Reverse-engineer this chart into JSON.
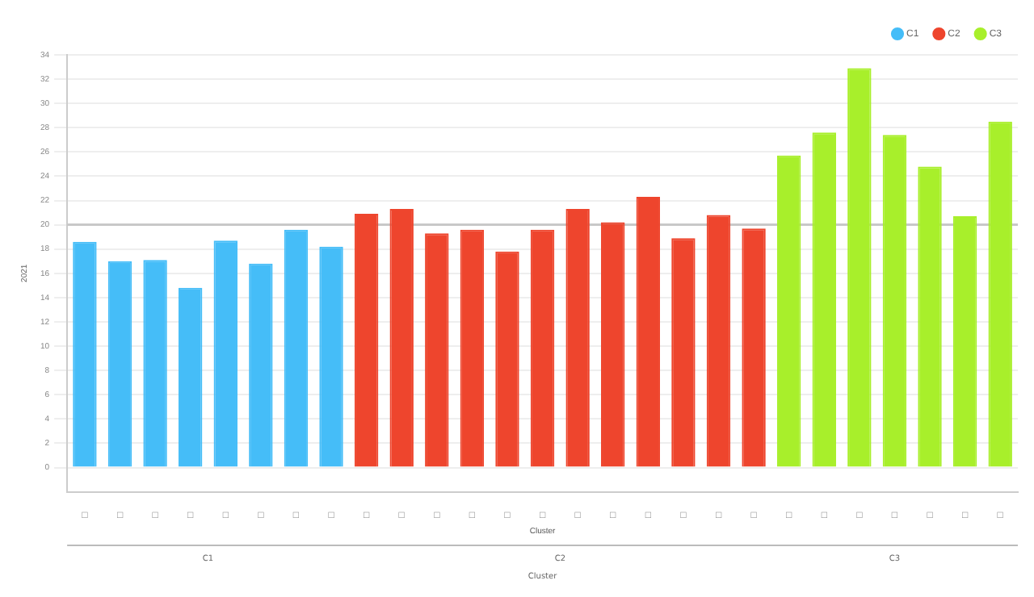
{
  "chart_data": {
    "type": "bar",
    "xlabel": "Cluster",
    "ylabel": "2021",
    "categories": [
      "□",
      "□",
      "□",
      "□",
      "□",
      "□",
      "□",
      "□",
      "□",
      "□",
      "□",
      "□",
      "□",
      "□",
      "□",
      "□",
      "□",
      "□",
      "□",
      "□",
      "□",
      "□",
      "□",
      "□",
      "□",
      "□",
      "□"
    ],
    "series": [
      {
        "name": "C1",
        "color": "#45bdf8",
        "values": [
          18.6,
          17,
          17.1,
          14.8,
          18.7,
          16.8,
          19.6,
          18.2,
          null,
          null,
          null,
          null,
          null,
          null,
          null,
          null,
          null,
          null,
          null,
          null,
          null,
          null,
          null,
          null,
          null,
          null,
          null
        ]
      },
      {
        "name": "C2",
        "color": "#ee452d",
        "values": [
          null,
          null,
          null,
          null,
          null,
          null,
          null,
          null,
          20.9,
          21.3,
          19.3,
          19.6,
          17.8,
          19.6,
          21.3,
          20.2,
          22.3,
          18.9,
          20.8,
          19.7,
          null,
          null,
          null,
          null,
          null,
          null,
          null
        ]
      },
      {
        "name": "C3",
        "color": "#a8ef2b",
        "values": [
          null,
          null,
          null,
          null,
          null,
          null,
          null,
          null,
          null,
          null,
          null,
          null,
          null,
          null,
          null,
          null,
          null,
          null,
          null,
          null,
          25.7,
          27.6,
          32.9,
          27.4,
          24.8,
          20.7,
          28.5
        ]
      }
    ],
    "ylim": [
      -2,
      34
    ],
    "yticks": [
      0,
      2,
      4,
      6,
      8,
      10,
      12,
      14,
      16,
      18,
      20,
      22,
      24,
      26,
      28,
      30,
      32,
      34
    ],
    "ref_lines": [
      {
        "axis": "y",
        "value": 20,
        "color": "#c8c8c8"
      }
    ],
    "annotations": [
      "C1",
      "C2",
      "C3",
      "Cluster"
    ],
    "grid": "y",
    "legend": "top right"
  }
}
